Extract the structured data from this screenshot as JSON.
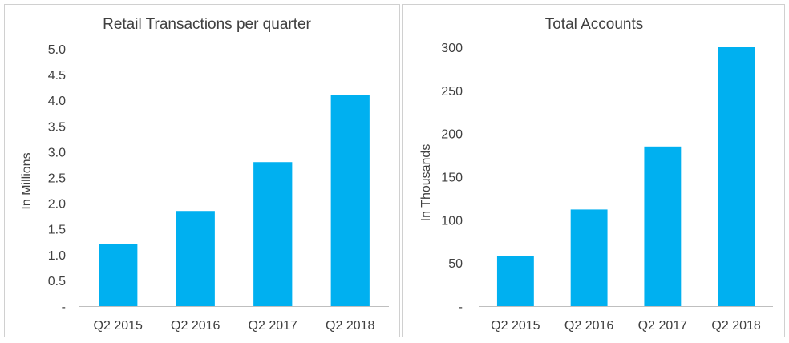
{
  "chart_data": [
    {
      "type": "bar",
      "title": "Retail Transactions per quarter",
      "xlabel": "",
      "ylabel": "In Millions",
      "categories": [
        "Q2 2015",
        "Q2 2016",
        "Q2 2017",
        "Q2 2018"
      ],
      "values": [
        1.2,
        1.85,
        2.8,
        4.1
      ],
      "ylim": [
        0,
        5
      ],
      "yticks": [
        0,
        0.5,
        1,
        1.5,
        2,
        2.5,
        3,
        3.5,
        4,
        4.5,
        5
      ],
      "ytick_labels": [
        "-",
        "0.5",
        "1.0",
        "1.5",
        "2.0",
        "2.5",
        "3.0",
        "3.5",
        "4.0",
        "4.5",
        "5.0"
      ],
      "grid": false,
      "color": "#00b0f0"
    },
    {
      "type": "bar",
      "title": "Total Accounts",
      "xlabel": "",
      "ylabel": "In Thousands",
      "categories": [
        "Q2 2015",
        "Q2 2016",
        "Q2 2017",
        "Q2 2018"
      ],
      "values": [
        58,
        112,
        185,
        300
      ],
      "ylim": [
        0,
        300
      ],
      "yticks": [
        0,
        50,
        100,
        150,
        200,
        250,
        300
      ],
      "ytick_labels": [
        "-",
        "50",
        "100",
        "150",
        "200",
        "250",
        "300"
      ],
      "grid": false,
      "color": "#00b0f0"
    }
  ]
}
